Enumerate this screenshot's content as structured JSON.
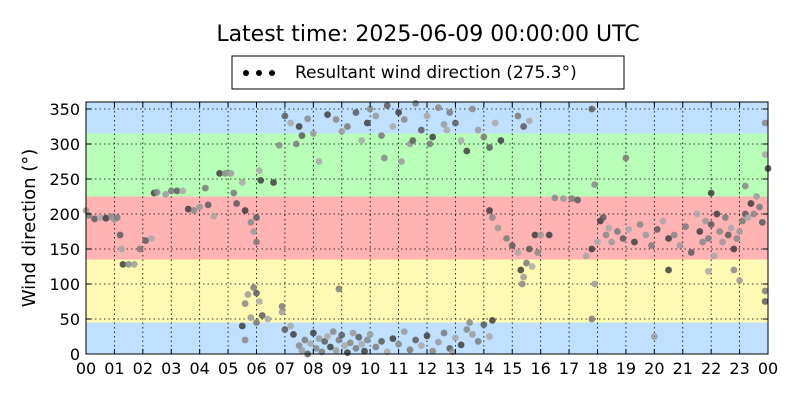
{
  "chart_data": {
    "type": "scatter",
    "title": "Latest time: 2025-06-09 00:00:00 UTC",
    "ylabel": "Wind direction (°)",
    "xlabel": "",
    "ylim": [
      0,
      360
    ],
    "yticks": [
      0,
      50,
      100,
      150,
      200,
      250,
      300,
      350
    ],
    "xlim": [
      0,
      24
    ],
    "xtick_labels": [
      "00",
      "01",
      "02",
      "03",
      "04",
      "05",
      "06",
      "07",
      "08",
      "09",
      "10",
      "11",
      "12",
      "13",
      "14",
      "15",
      "16",
      "17",
      "18",
      "19",
      "20",
      "21",
      "22",
      "23",
      "00"
    ],
    "grid": true,
    "legend_position": "top-center",
    "bands": [
      {
        "from": 0,
        "to": 45,
        "color": "#bfe0ff"
      },
      {
        "from": 45,
        "to": 135,
        "color": "#fffab3"
      },
      {
        "from": 135,
        "to": 225,
        "color": "#ffb3b3"
      },
      {
        "from": 225,
        "to": 315,
        "color": "#b8ffb8"
      },
      {
        "from": 315,
        "to": 360,
        "color": "#bfe0ff"
      }
    ],
    "series": [
      {
        "name": "Resultant wind direction (275.3°)",
        "color": "#444444",
        "points": [
          [
            0.0,
            205
          ],
          [
            0.1,
            198
          ],
          [
            0.3,
            193
          ],
          [
            0.5,
            195
          ],
          [
            0.7,
            194
          ],
          [
            0.9,
            196
          ],
          [
            1.0,
            192
          ],
          [
            1.1,
            195
          ],
          [
            1.2,
            170
          ],
          [
            1.25,
            150
          ],
          [
            1.3,
            128
          ],
          [
            1.5,
            128
          ],
          [
            1.7,
            128
          ],
          [
            1.9,
            150
          ],
          [
            2.1,
            162
          ],
          [
            2.3,
            165
          ],
          [
            2.4,
            230
          ],
          [
            2.5,
            231
          ],
          [
            2.8,
            228
          ],
          [
            3.0,
            233
          ],
          [
            3.2,
            233
          ],
          [
            3.4,
            233
          ],
          [
            3.6,
            207
          ],
          [
            3.8,
            205
          ],
          [
            4.0,
            210
          ],
          [
            4.2,
            237
          ],
          [
            4.3,
            213
          ],
          [
            4.5,
            197
          ],
          [
            4.7,
            258
          ],
          [
            4.9,
            258
          ],
          [
            5.1,
            258
          ],
          [
            5.2,
            230
          ],
          [
            5.3,
            215
          ],
          [
            5.5,
            245
          ],
          [
            5.6,
            205
          ],
          [
            5.8,
            188
          ],
          [
            5.9,
            175
          ],
          [
            6.0,
            160
          ],
          [
            6.0,
            195
          ],
          [
            6.1,
            262
          ],
          [
            6.15,
            248
          ],
          [
            5.6,
            72
          ],
          [
            5.7,
            85
          ],
          [
            5.9,
            95
          ],
          [
            6.0,
            87
          ],
          [
            6.1,
            75
          ],
          [
            5.5,
            40
          ],
          [
            5.6,
            20
          ],
          [
            5.8,
            52
          ],
          [
            6.0,
            45
          ],
          [
            6.2,
            55
          ],
          [
            6.4,
            50
          ],
          [
            6.6,
            245
          ],
          [
            6.8,
            298
          ],
          [
            6.9,
            60
          ],
          [
            6.9,
            68
          ],
          [
            7.0,
            35
          ],
          [
            7.2,
            40
          ],
          [
            7.3,
            28
          ],
          [
            7.5,
            12
          ],
          [
            7.6,
            5
          ],
          [
            7.7,
            20
          ],
          [
            7.8,
            0
          ],
          [
            7.9,
            15
          ],
          [
            8.0,
            30
          ],
          [
            8.1,
            8
          ],
          [
            8.2,
            22
          ],
          [
            8.3,
            3
          ],
          [
            8.4,
            18
          ],
          [
            8.5,
            25
          ],
          [
            8.6,
            10
          ],
          [
            8.7,
            32
          ],
          [
            8.8,
            5
          ],
          [
            8.9,
            20
          ],
          [
            9.0,
            27
          ],
          [
            9.1,
            12
          ],
          [
            9.2,
            2
          ],
          [
            9.3,
            16
          ],
          [
            9.4,
            30
          ],
          [
            9.5,
            8
          ],
          [
            9.6,
            24
          ],
          [
            9.7,
            14
          ],
          [
            9.8,
            4
          ],
          [
            9.9,
            20
          ],
          [
            10.0,
            28
          ],
          [
            10.2,
            10
          ],
          [
            10.4,
            18
          ],
          [
            10.6,
            3
          ],
          [
            10.8,
            22
          ],
          [
            11.0,
            14
          ],
          [
            11.2,
            32
          ],
          [
            11.4,
            6
          ],
          [
            11.6,
            20
          ],
          [
            11.8,
            12
          ],
          [
            12.0,
            26
          ],
          [
            12.2,
            4
          ],
          [
            12.4,
            17
          ],
          [
            12.6,
            30
          ],
          [
            12.8,
            8
          ],
          [
            13.0,
            23
          ],
          [
            13.2,
            13
          ],
          [
            13.4,
            35
          ],
          [
            13.6,
            28
          ],
          [
            13.8,
            18
          ],
          [
            14.0,
            42
          ],
          [
            14.2,
            25
          ],
          [
            14.3,
            48
          ],
          [
            13.5,
            45
          ],
          [
            12.9,
            3
          ],
          [
            8.9,
            93
          ],
          [
            7.0,
            340
          ],
          [
            7.2,
            330
          ],
          [
            7.5,
            325
          ],
          [
            7.8,
            336
          ],
          [
            8.0,
            315
          ],
          [
            7.4,
            300
          ],
          [
            7.6,
            312
          ],
          [
            8.2,
            275
          ],
          [
            8.5,
            342
          ],
          [
            8.8,
            335
          ],
          [
            9.0,
            318
          ],
          [
            9.2,
            325
          ],
          [
            9.5,
            345
          ],
          [
            9.7,
            305
          ],
          [
            9.9,
            330
          ],
          [
            10.0,
            350
          ],
          [
            10.2,
            340
          ],
          [
            10.4,
            312
          ],
          [
            10.6,
            355
          ],
          [
            10.8,
            325
          ],
          [
            11.0,
            345
          ],
          [
            11.2,
            335
          ],
          [
            11.4,
            300
          ],
          [
            11.6,
            358
          ],
          [
            11.8,
            320
          ],
          [
            12.0,
            340
          ],
          [
            12.2,
            310
          ],
          [
            12.4,
            352
          ],
          [
            12.6,
            328
          ],
          [
            12.8,
            345
          ],
          [
            13.0,
            330
          ],
          [
            13.2,
            305
          ],
          [
            13.4,
            290
          ],
          [
            13.6,
            350
          ],
          [
            13.8,
            320
          ],
          [
            14.0,
            310
          ],
          [
            14.2,
            295
          ],
          [
            14.4,
            330
          ],
          [
            14.6,
            305
          ],
          [
            10.5,
            280
          ],
          [
            11.1,
            275
          ],
          [
            12.1,
            300
          ],
          [
            11.5,
            305
          ],
          [
            12.7,
            320
          ],
          [
            14.2,
            205
          ],
          [
            14.3,
            195
          ],
          [
            14.5,
            180
          ],
          [
            14.8,
            165
          ],
          [
            15.0,
            155
          ],
          [
            15.2,
            145
          ],
          [
            15.3,
            120
          ],
          [
            15.35,
            100
          ],
          [
            15.4,
            110
          ],
          [
            15.5,
            130
          ],
          [
            15.6,
            150
          ],
          [
            15.7,
            125
          ],
          [
            15.8,
            170
          ],
          [
            15.9,
            145
          ],
          [
            16.0,
            170
          ],
          [
            15.2,
            340
          ],
          [
            15.4,
            325
          ],
          [
            15.6,
            333
          ],
          [
            16.3,
            170
          ],
          [
            16.5,
            223
          ],
          [
            16.8,
            222
          ],
          [
            17.1,
            222
          ],
          [
            17.3,
            220
          ],
          [
            17.6,
            140
          ],
          [
            17.8,
            150
          ],
          [
            17.9,
            242
          ],
          [
            17.9,
            100
          ],
          [
            17.8,
            50
          ],
          [
            17.8,
            350
          ],
          [
            18.0,
            160
          ],
          [
            18.1,
            190
          ],
          [
            18.3,
            170
          ],
          [
            18.5,
            160
          ],
          [
            18.7,
            175
          ],
          [
            18.9,
            165
          ],
          [
            19.1,
            178
          ],
          [
            19.3,
            160
          ],
          [
            19.5,
            185
          ],
          [
            19.7,
            170
          ],
          [
            19.9,
            155
          ],
          [
            20.1,
            178
          ],
          [
            20.3,
            190
          ],
          [
            20.5,
            165
          ],
          [
            20.7,
            170
          ],
          [
            20.9,
            155
          ],
          [
            21.1,
            182
          ],
          [
            21.3,
            145
          ],
          [
            21.5,
            200
          ],
          [
            21.6,
            175
          ],
          [
            21.7,
            160
          ],
          [
            21.8,
            190
          ],
          [
            21.9,
            165
          ],
          [
            22.0,
            185
          ],
          [
            22.1,
            140
          ],
          [
            22.2,
            200
          ],
          [
            22.3,
            175
          ],
          [
            22.4,
            160
          ],
          [
            22.5,
            195
          ],
          [
            22.6,
            170
          ],
          [
            22.7,
            180
          ],
          [
            22.8,
            150
          ],
          [
            22.9,
            165
          ],
          [
            23.0,
            175
          ],
          [
            23.1,
            190
          ],
          [
            23.2,
            200
          ],
          [
            23.3,
            195
          ],
          [
            23.4,
            215
          ],
          [
            23.5,
            200
          ],
          [
            23.6,
            225
          ],
          [
            23.7,
            210
          ],
          [
            23.8,
            188
          ],
          [
            21.9,
            118
          ],
          [
            20.5,
            120
          ],
          [
            22.8,
            120
          ],
          [
            23.0,
            105
          ],
          [
            23.9,
            90
          ],
          [
            23.9,
            75
          ],
          [
            23.9,
            285
          ],
          [
            24.0,
            265
          ],
          [
            23.9,
            330
          ],
          [
            20.0,
            25
          ],
          [
            19.0,
            280
          ],
          [
            18.2,
            195
          ],
          [
            18.4,
            180
          ],
          [
            22.0,
            230
          ],
          [
            23.2,
            240
          ]
        ]
      }
    ]
  }
}
